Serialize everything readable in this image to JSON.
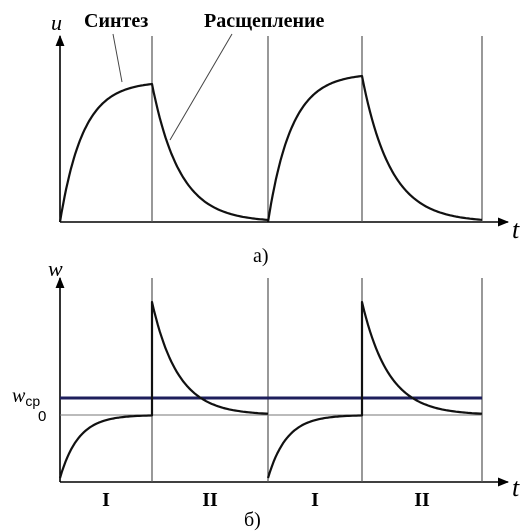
{
  "top_panel": {
    "y_label": "u",
    "x_label": "t",
    "panel_label": "а)",
    "annotations": {
      "synthesis": "Синтез",
      "cleavage": "Расщепление"
    }
  },
  "bottom_panel": {
    "y_label": "w",
    "x_label": "t",
    "panel_label": "б)",
    "avg_label": "w",
    "avg_subscript": "ср",
    "zero_label": "0",
    "phases": [
      "I",
      "II",
      "I",
      "II"
    ]
  },
  "colors": {
    "curve": "#111111",
    "average_line": "#1e1f5c"
  }
}
